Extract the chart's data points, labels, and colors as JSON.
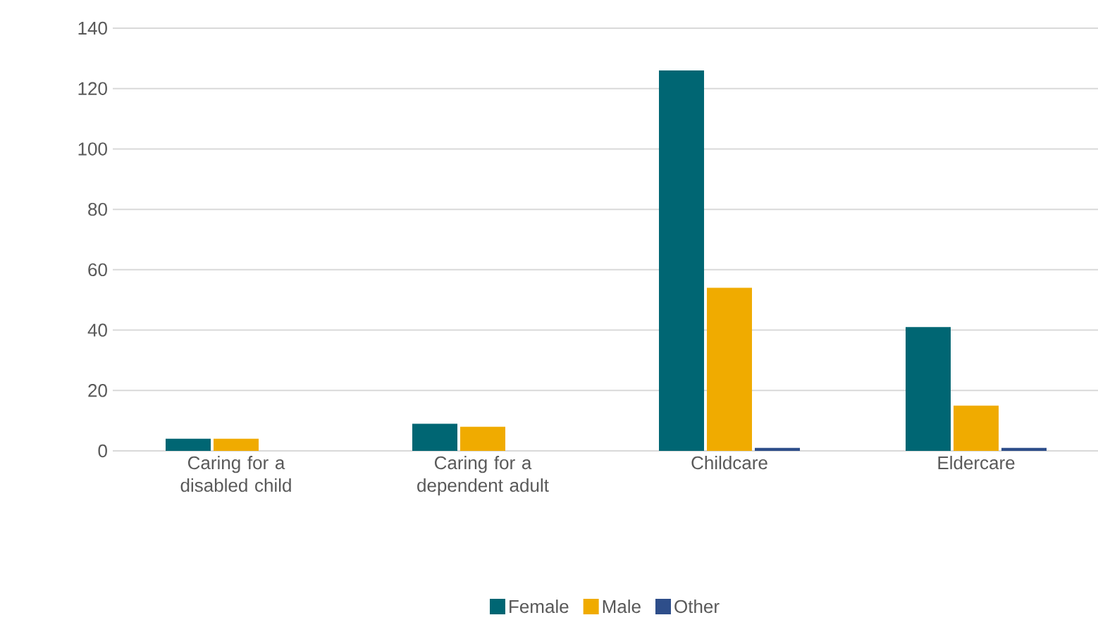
{
  "chart_data": {
    "type": "bar",
    "categories": [
      "Caring for a disabled child",
      "Caring for a dependent adult",
      "Childcare",
      "Eldercare"
    ],
    "series": [
      {
        "name": "Female",
        "color": "#006673",
        "values": [
          4,
          9,
          126,
          41
        ]
      },
      {
        "name": "Male",
        "color": "#f0ab00",
        "values": [
          4,
          8,
          54,
          15
        ]
      },
      {
        "name": "Other",
        "color": "#2e4e8a",
        "values": [
          0,
          0,
          1,
          1
        ]
      }
    ],
    "ylim": [
      0,
      140
    ],
    "yticks": [
      0,
      20,
      40,
      60,
      80,
      100,
      120,
      140
    ],
    "grid": "y",
    "legend": "bottom"
  }
}
